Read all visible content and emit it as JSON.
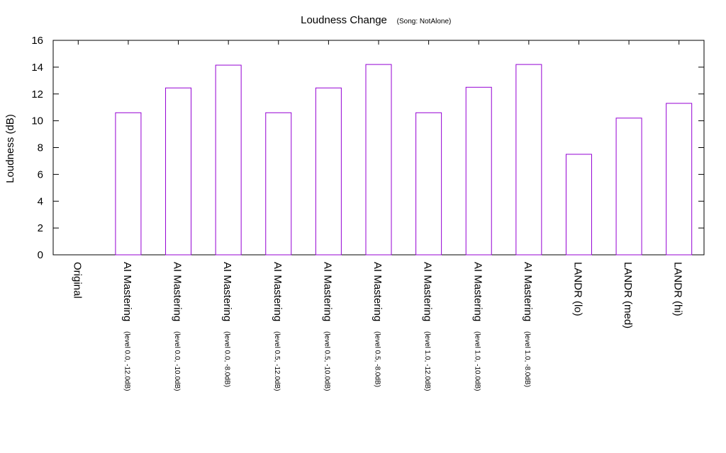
{
  "chart_data": {
    "type": "bar",
    "title": "Loudness Change",
    "subtitle": "(Song: NotAlone)",
    "ylabel": "Loudness (dB)",
    "xlabel": "",
    "ylim": [
      0,
      16
    ],
    "yticks": [
      "0",
      "2",
      "4",
      "6",
      "8",
      "10",
      "12",
      "14",
      "16"
    ],
    "grid": false,
    "bar_color": "#9400d3",
    "categories": [
      {
        "label": "Original",
        "sub": ""
      },
      {
        "label": "AI Mastering",
        "sub": "(level 0.0, -12.0dB)"
      },
      {
        "label": "AI Mastering",
        "sub": "(level 0.0, -10.0dB)"
      },
      {
        "label": "AI Mastering",
        "sub": "(level 0.0, -8.0dB)"
      },
      {
        "label": "AI Mastering",
        "sub": "(level 0.5, -12.0dB)"
      },
      {
        "label": "AI Mastering",
        "sub": "(level 0.5, -10.0dB)"
      },
      {
        "label": "AI Mastering",
        "sub": "(level 0.5, -8.0dB)"
      },
      {
        "label": "AI Mastering",
        "sub": "(level 1.0, -12.0dB)"
      },
      {
        "label": "AI Mastering",
        "sub": "(level 1.0, -10.0dB)"
      },
      {
        "label": "AI Mastering",
        "sub": "(level 1.0, -8.0dB)"
      },
      {
        "label": "LANDR (lo)",
        "sub": ""
      },
      {
        "label": "LANDR (med)",
        "sub": ""
      },
      {
        "label": "LANDR (hi)",
        "sub": ""
      }
    ],
    "values": [
      0,
      10.6,
      12.45,
      14.15,
      10.6,
      12.45,
      14.2,
      10.6,
      12.5,
      14.2,
      7.5,
      10.2,
      11.3
    ]
  }
}
